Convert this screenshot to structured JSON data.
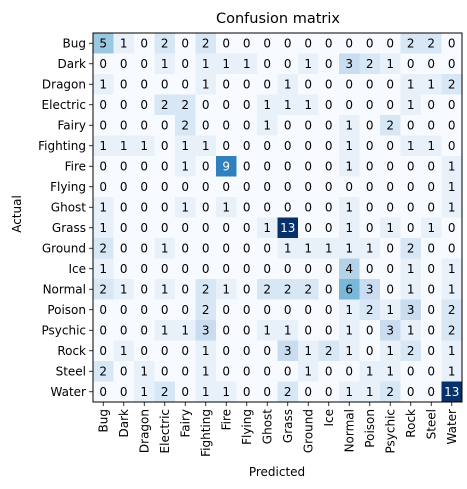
{
  "chart_data": {
    "type": "heatmap",
    "title": "Confusion matrix",
    "xlabel": "Predicted",
    "ylabel": "Actual",
    "colormap": "Blues",
    "color_low": "#f7fbff",
    "color_high": "#08306b",
    "value_range": [
      0,
      13
    ],
    "x_categories": [
      "Bug",
      "Dark",
      "Dragon",
      "Electric",
      "Fairy",
      "Fighting",
      "Fire",
      "Flying",
      "Ghost",
      "Grass",
      "Ground",
      "Ice",
      "Normal",
      "Poison",
      "Psychic",
      "Rock",
      "Steel",
      "Water"
    ],
    "y_categories": [
      "Bug",
      "Dark",
      "Dragon",
      "Electric",
      "Fairy",
      "Fighting",
      "Fire",
      "Flying",
      "Ghost",
      "Grass",
      "Ground",
      "Ice",
      "Normal",
      "Poison",
      "Psychic",
      "Rock",
      "Steel",
      "Water"
    ],
    "matrix": [
      [
        5,
        1,
        0,
        2,
        0,
        2,
        0,
        0,
        0,
        0,
        0,
        0,
        0,
        0,
        0,
        2,
        2,
        0
      ],
      [
        0,
        0,
        0,
        1,
        0,
        1,
        1,
        1,
        0,
        0,
        1,
        0,
        3,
        2,
        1,
        0,
        0,
        0
      ],
      [
        1,
        0,
        0,
        0,
        0,
        1,
        0,
        0,
        0,
        1,
        0,
        0,
        0,
        0,
        0,
        1,
        1,
        2
      ],
      [
        0,
        0,
        0,
        2,
        2,
        0,
        0,
        0,
        1,
        1,
        1,
        0,
        0,
        0,
        0,
        1,
        0,
        0
      ],
      [
        0,
        0,
        0,
        0,
        2,
        0,
        0,
        0,
        1,
        0,
        0,
        0,
        1,
        0,
        2,
        0,
        0,
        0
      ],
      [
        1,
        1,
        1,
        0,
        1,
        1,
        0,
        0,
        0,
        0,
        0,
        0,
        1,
        0,
        0,
        1,
        1,
        0
      ],
      [
        0,
        0,
        0,
        0,
        1,
        0,
        9,
        0,
        0,
        0,
        0,
        0,
        1,
        0,
        0,
        0,
        0,
        1
      ],
      [
        0,
        0,
        0,
        0,
        0,
        0,
        0,
        0,
        0,
        0,
        0,
        0,
        0,
        0,
        0,
        0,
        0,
        1
      ],
      [
        1,
        0,
        0,
        0,
        1,
        0,
        1,
        0,
        0,
        0,
        0,
        0,
        1,
        0,
        0,
        0,
        0,
        1
      ],
      [
        1,
        0,
        0,
        0,
        0,
        0,
        0,
        0,
        1,
        13,
        0,
        0,
        1,
        0,
        1,
        0,
        1,
        0
      ],
      [
        2,
        0,
        0,
        1,
        0,
        0,
        0,
        0,
        0,
        1,
        1,
        1,
        1,
        1,
        0,
        2,
        0,
        0
      ],
      [
        1,
        0,
        0,
        0,
        0,
        0,
        0,
        0,
        0,
        0,
        0,
        0,
        4,
        0,
        0,
        1,
        0,
        1
      ],
      [
        2,
        1,
        0,
        1,
        0,
        2,
        1,
        0,
        2,
        2,
        2,
        0,
        6,
        3,
        0,
        1,
        0,
        1
      ],
      [
        0,
        0,
        0,
        0,
        0,
        2,
        0,
        0,
        0,
        0,
        0,
        0,
        1,
        2,
        1,
        3,
        0,
        2
      ],
      [
        0,
        0,
        0,
        1,
        1,
        3,
        0,
        0,
        1,
        1,
        0,
        0,
        1,
        0,
        3,
        1,
        0,
        2
      ],
      [
        0,
        1,
        0,
        0,
        0,
        1,
        0,
        0,
        0,
        3,
        1,
        2,
        1,
        0,
        1,
        2,
        0,
        1
      ],
      [
        2,
        0,
        1,
        0,
        0,
        1,
        0,
        0,
        0,
        0,
        1,
        0,
        0,
        1,
        1,
        0,
        0,
        1
      ],
      [
        0,
        0,
        1,
        2,
        0,
        1,
        1,
        0,
        0,
        2,
        0,
        0,
        1,
        1,
        2,
        0,
        0,
        13
      ]
    ]
  }
}
